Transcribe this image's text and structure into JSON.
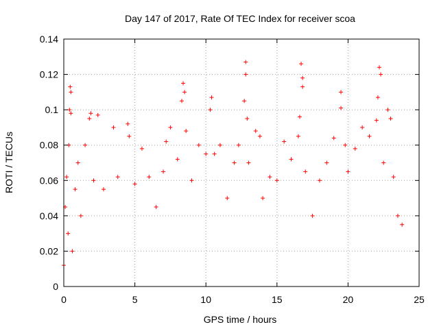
{
  "chart_data": {
    "type": "scatter",
    "title": "Day 147 of 2017, Rate Of TEC Index for receiver scoa",
    "xlabel": "GPS time / hours",
    "ylabel": "ROTI / TECUs",
    "xlim": [
      0,
      25
    ],
    "ylim": [
      0,
      0.14
    ],
    "x_ticks": [
      0,
      5,
      10,
      15,
      20,
      25
    ],
    "y_ticks": [
      0,
      0.02,
      0.04,
      0.06,
      0.08,
      0.1,
      0.12,
      0.14
    ],
    "x_tick_labels": [
      "0",
      "5",
      "10",
      "15",
      "20",
      "25"
    ],
    "y_tick_labels": [
      "0",
      "0.02",
      "0.04",
      "0.06",
      "0.08",
      "0.1",
      "0.12",
      "0.14"
    ],
    "grid": true,
    "marker": "+",
    "color": "#ff0000",
    "series": [
      {
        "points": [
          [
            0.0,
            0.012
          ],
          [
            0.1,
            0.045
          ],
          [
            0.2,
            0.062
          ],
          [
            0.3,
            0.03
          ],
          [
            0.35,
            0.08
          ],
          [
            0.4,
            0.1
          ],
          [
            0.45,
            0.113
          ],
          [
            0.5,
            0.11
          ],
          [
            0.5,
            0.098
          ],
          [
            0.6,
            0.02
          ],
          [
            0.8,
            0.055
          ],
          [
            1.0,
            0.07
          ],
          [
            1.2,
            0.04
          ],
          [
            1.5,
            0.08
          ],
          [
            1.8,
            0.095
          ],
          [
            1.9,
            0.098
          ],
          [
            2.1,
            0.06
          ],
          [
            2.4,
            0.097
          ],
          [
            2.8,
            0.055
          ],
          [
            3.5,
            0.09
          ],
          [
            3.8,
            0.062
          ],
          [
            4.5,
            0.092
          ],
          [
            4.6,
            0.085
          ],
          [
            5.0,
            0.058
          ],
          [
            5.5,
            0.078
          ],
          [
            6.0,
            0.062
          ],
          [
            6.5,
            0.045
          ],
          [
            7.0,
            0.065
          ],
          [
            7.2,
            0.082
          ],
          [
            7.5,
            0.09
          ],
          [
            8.0,
            0.072
          ],
          [
            8.3,
            0.105
          ],
          [
            8.4,
            0.115
          ],
          [
            8.5,
            0.11
          ],
          [
            8.6,
            0.088
          ],
          [
            9.0,
            0.06
          ],
          [
            9.5,
            0.08
          ],
          [
            10.0,
            0.075
          ],
          [
            10.3,
            0.1
          ],
          [
            10.4,
            0.107
          ],
          [
            10.6,
            0.075
          ],
          [
            11.0,
            0.08
          ],
          [
            11.5,
            0.05
          ],
          [
            12.0,
            0.07
          ],
          [
            12.3,
            0.08
          ],
          [
            12.7,
            0.105
          ],
          [
            12.8,
            0.127
          ],
          [
            12.8,
            0.12
          ],
          [
            12.9,
            0.095
          ],
          [
            13.0,
            0.07
          ],
          [
            13.5,
            0.088
          ],
          [
            13.8,
            0.085
          ],
          [
            14.0,
            0.05
          ],
          [
            14.5,
            0.062
          ],
          [
            15.0,
            0.06
          ],
          [
            15.5,
            0.082
          ],
          [
            16.0,
            0.072
          ],
          [
            16.5,
            0.085
          ],
          [
            16.6,
            0.096
          ],
          [
            16.7,
            0.126
          ],
          [
            16.8,
            0.118
          ],
          [
            16.8,
            0.113
          ],
          [
            17.0,
            0.065
          ],
          [
            17.5,
            0.04
          ],
          [
            18.0,
            0.06
          ],
          [
            18.5,
            0.07
          ],
          [
            19.0,
            0.084
          ],
          [
            19.5,
            0.11
          ],
          [
            19.5,
            0.101
          ],
          [
            19.8,
            0.08
          ],
          [
            20.0,
            0.065
          ],
          [
            20.5,
            0.078
          ],
          [
            21.0,
            0.09
          ],
          [
            21.5,
            0.085
          ],
          [
            22.0,
            0.094
          ],
          [
            22.1,
            0.107
          ],
          [
            22.2,
            0.124
          ],
          [
            22.3,
            0.12
          ],
          [
            22.5,
            0.07
          ],
          [
            22.8,
            0.1
          ],
          [
            23.0,
            0.095
          ],
          [
            23.2,
            0.062
          ],
          [
            23.5,
            0.04
          ],
          [
            23.8,
            0.035
          ]
        ]
      }
    ]
  }
}
